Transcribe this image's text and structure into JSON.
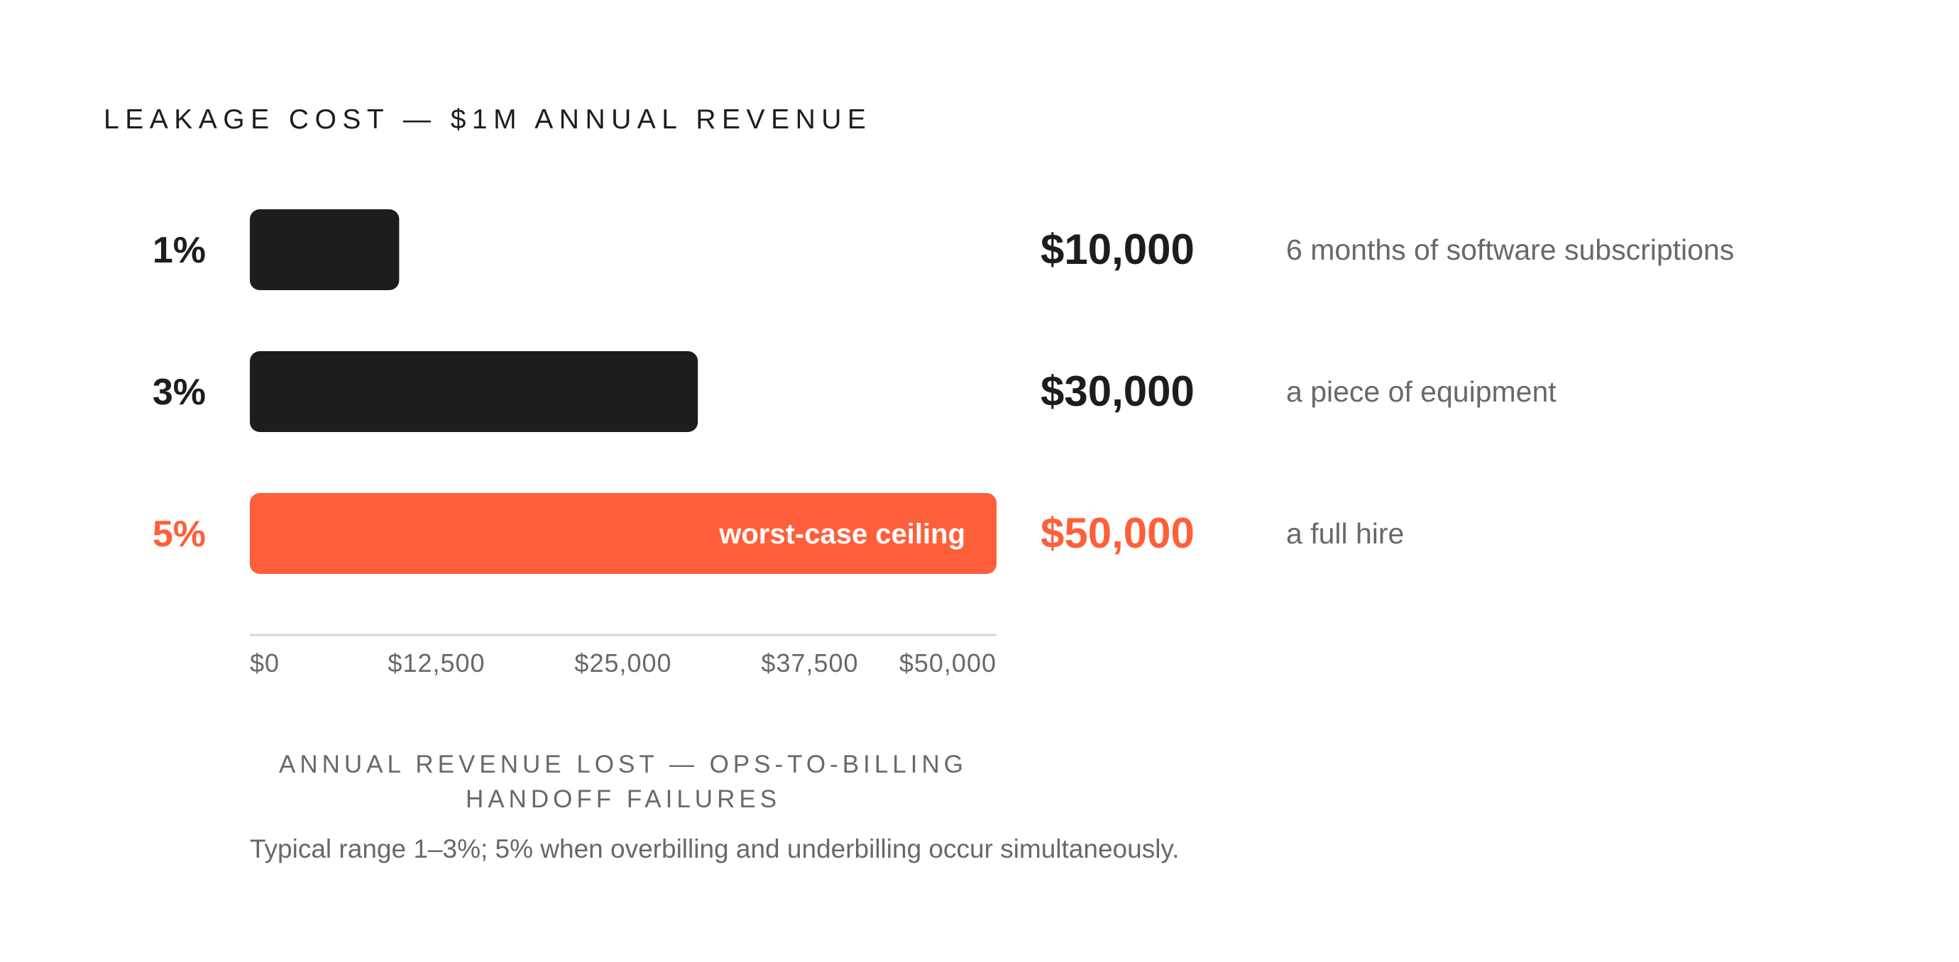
{
  "chart_data": {
    "type": "bar",
    "orientation": "horizontal",
    "title": "LEAKAGE COST — $1M ANNUAL REVENUE",
    "categories": [
      "1%",
      "3%",
      "5%"
    ],
    "values": [
      10000,
      30000,
      50000
    ],
    "value_labels": [
      "$10,000",
      "$30,000",
      "$50,000"
    ],
    "descriptions": [
      "6 months of software subscriptions",
      "a piece of equipment",
      "a full hire"
    ],
    "highlight_index": 2,
    "bar_annotation": "worst-case ceiling",
    "xlim": [
      0,
      50000
    ],
    "x_ticks": [
      0,
      12500,
      25000,
      37500,
      50000
    ],
    "x_tick_labels": [
      "$0",
      "$12,500",
      "$25,000",
      "$37,500",
      "$50,000"
    ],
    "xlabel_lines": [
      "ANNUAL REVENUE LOST — OPS-TO-BILLING",
      "HANDOFF FAILURES"
    ],
    "footnote": "Typical range 1–3%; 5% when overbilling and underbilling occur simultaneously.",
    "grid": false,
    "legend": "none",
    "colors": {
      "default_bar": "#1b1e1b",
      "highlight": "#ff5e3a",
      "axis_line": "#d4d4d4",
      "muted_text": "#66696a",
      "annotation_text": "#ffffff"
    }
  }
}
